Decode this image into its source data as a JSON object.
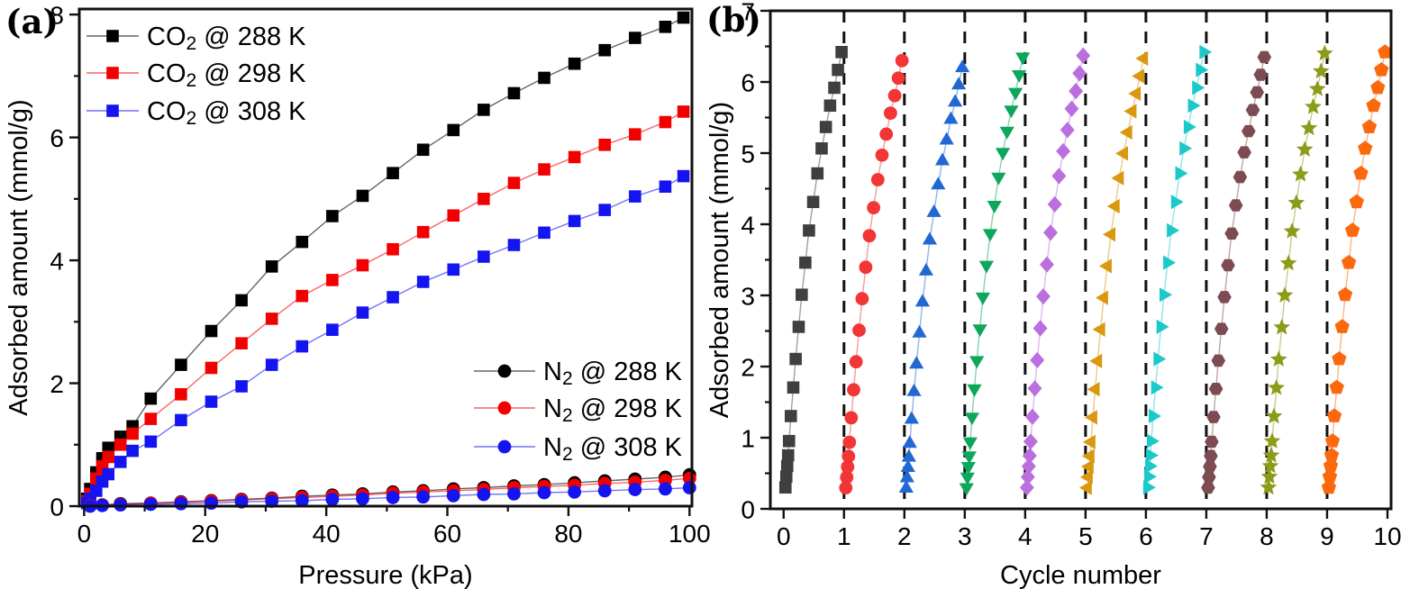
{
  "panels": {
    "a": {
      "tag": "(a)"
    },
    "b": {
      "tag": "(b)"
    }
  },
  "chart_data": [
    {
      "type": "scatter",
      "panel": "a",
      "xlabel": "Pressure (kPa)",
      "ylabel": "Adsorbed amount (mmol/g)",
      "xlim": [
        0,
        100
      ],
      "ylim": [
        0,
        8
      ],
      "x_major_ticks": [
        0,
        20,
        40,
        60,
        80,
        100
      ],
      "x_minor_ticks": [
        10,
        30,
        50,
        70,
        90
      ],
      "y_major_ticks": [
        0,
        2,
        4,
        6,
        8
      ],
      "y_minor_ticks": [
        1,
        3,
        5,
        7
      ],
      "grid": false,
      "legend_position": [
        "upper-left",
        "middle-right"
      ],
      "series": [
        {
          "id": "co2-288k",
          "label": "CO2 @ 288 K",
          "marker": "square",
          "color": "#000000",
          "x": [
            0.5,
            1,
            2,
            3,
            4,
            6,
            8,
            11,
            16,
            21,
            26,
            31,
            36,
            41,
            46,
            51,
            56,
            61,
            66,
            71,
            76,
            81,
            86,
            91,
            96,
            99
          ],
          "y": [
            0.12,
            0.28,
            0.55,
            0.78,
            0.95,
            1.13,
            1.3,
            1.75,
            2.3,
            2.85,
            3.35,
            3.9,
            4.3,
            4.72,
            5.05,
            5.42,
            5.8,
            6.12,
            6.45,
            6.72,
            6.97,
            7.2,
            7.42,
            7.62,
            7.8,
            7.95
          ]
        },
        {
          "id": "co2-298k",
          "label": "CO2 @ 298 K",
          "marker": "square",
          "color": "#f20000",
          "x": [
            0.5,
            1,
            2,
            3,
            4,
            6,
            8,
            11,
            16,
            21,
            26,
            31,
            36,
            41,
            46,
            51,
            56,
            61,
            66,
            71,
            76,
            81,
            86,
            91,
            96,
            99
          ],
          "y": [
            0.08,
            0.2,
            0.45,
            0.65,
            0.8,
            1.0,
            1.18,
            1.42,
            1.82,
            2.25,
            2.65,
            3.05,
            3.42,
            3.68,
            3.92,
            4.18,
            4.46,
            4.73,
            5.0,
            5.26,
            5.48,
            5.68,
            5.88,
            6.05,
            6.25,
            6.42
          ]
        },
        {
          "id": "co2-308k",
          "label": "CO2 @ 308 K",
          "marker": "square",
          "color": "#1414f0",
          "x": [
            0.5,
            1,
            2,
            3,
            4,
            6,
            8,
            11,
            16,
            21,
            26,
            31,
            36,
            41,
            46,
            51,
            56,
            61,
            66,
            71,
            76,
            81,
            86,
            91,
            96,
            99
          ],
          "y": [
            0.05,
            0.12,
            0.25,
            0.4,
            0.52,
            0.72,
            0.9,
            1.05,
            1.4,
            1.7,
            1.95,
            2.3,
            2.6,
            2.87,
            3.15,
            3.4,
            3.65,
            3.85,
            4.06,
            4.25,
            4.45,
            4.64,
            4.82,
            5.04,
            5.2,
            5.37
          ]
        },
        {
          "id": "n2-288k",
          "label": "N2 @ 288 K",
          "marker": "circle",
          "color": "#000000",
          "x": [
            1,
            3,
            6,
            11,
            16,
            21,
            26,
            31,
            36,
            41,
            46,
            51,
            56,
            61,
            66,
            71,
            76,
            81,
            86,
            91,
            96,
            100
          ],
          "y": [
            0.01,
            0.02,
            0.04,
            0.05,
            0.07,
            0.09,
            0.11,
            0.13,
            0.16,
            0.18,
            0.2,
            0.23,
            0.25,
            0.28,
            0.3,
            0.33,
            0.35,
            0.38,
            0.41,
            0.44,
            0.47,
            0.51
          ]
        },
        {
          "id": "n2-298k",
          "label": "N2 @ 298 K",
          "marker": "circle",
          "color": "#f20000",
          "x": [
            1,
            3,
            6,
            11,
            16,
            21,
            26,
            31,
            36,
            41,
            46,
            51,
            56,
            61,
            66,
            71,
            76,
            81,
            86,
            91,
            96,
            100
          ],
          "y": [
            0.01,
            0.02,
            0.03,
            0.05,
            0.06,
            0.08,
            0.1,
            0.12,
            0.14,
            0.16,
            0.18,
            0.21,
            0.23,
            0.25,
            0.27,
            0.3,
            0.32,
            0.34,
            0.37,
            0.39,
            0.42,
            0.45
          ]
        },
        {
          "id": "n2-308k",
          "label": "N2 @ 308 K",
          "marker": "circle",
          "color": "#1414f0",
          "x": [
            1,
            3,
            6,
            11,
            16,
            21,
            26,
            31,
            36,
            41,
            46,
            51,
            56,
            61,
            66,
            71,
            76,
            81,
            86,
            91,
            96,
            100
          ],
          "y": [
            0.0,
            0.01,
            0.02,
            0.03,
            0.04,
            0.05,
            0.07,
            0.08,
            0.09,
            0.11,
            0.12,
            0.14,
            0.15,
            0.17,
            0.19,
            0.2,
            0.22,
            0.23,
            0.25,
            0.27,
            0.28,
            0.3
          ]
        }
      ]
    },
    {
      "type": "scatter",
      "panel": "b",
      "xlabel": "Cycle number",
      "ylabel": "Adsorbed amount (mmol/g)",
      "xlim": [
        0,
        10
      ],
      "ylim": [
        0,
        7
      ],
      "x_major_ticks": [
        0,
        1,
        2,
        3,
        4,
        5,
        6,
        7,
        8,
        9,
        10
      ],
      "y_major_ticks": [
        0,
        1,
        2,
        3,
        4,
        5,
        6,
        7
      ],
      "y_minor_ticks": [
        0.5,
        1.5,
        2.5,
        3.5,
        4.5,
        5.5,
        6.5
      ],
      "dashed_guides": [
        1,
        2,
        3,
        4,
        5,
        6,
        7,
        8,
        9
      ],
      "grid": false,
      "cycle_t_offsets": [
        0.03,
        0.045,
        0.06,
        0.075,
        0.09,
        0.12,
        0.16,
        0.2,
        0.25,
        0.3,
        0.36,
        0.42,
        0.49,
        0.56,
        0.63,
        0.7,
        0.77,
        0.84,
        0.9,
        0.96
      ],
      "cycle_y_profile": [
        0.3,
        0.45,
        0.6,
        0.75,
        0.95,
        1.3,
        1.7,
        2.1,
        2.55,
        3.0,
        3.45,
        3.9,
        4.3,
        4.7,
        5.05,
        5.35,
        5.65,
        5.9,
        6.15,
        6.4
      ],
      "profile_peak_reference": 6.4,
      "series": [
        {
          "id": "cycle-1",
          "marker": "square",
          "color": "#3f3f3f",
          "peak": 6.42
        },
        {
          "id": "cycle-2",
          "marker": "circle",
          "color": "#f23535",
          "peak": 6.3
        },
        {
          "id": "cycle-3",
          "marker": "triangle-up",
          "color": "#2268d2",
          "peak": 6.2
        },
        {
          "id": "cycle-4",
          "marker": "triangle-down",
          "color": "#0da75c",
          "peak": 6.35
        },
        {
          "id": "cycle-5",
          "marker": "diamond",
          "color": "#bb6fdf",
          "peak": 6.37
        },
        {
          "id": "cycle-6",
          "marker": "triangle-left",
          "color": "#d9980f",
          "peak": 6.33
        },
        {
          "id": "cycle-7",
          "marker": "triangle-right",
          "color": "#1cc9c9",
          "peak": 6.42
        },
        {
          "id": "cycle-8",
          "marker": "hexagon",
          "color": "#7d4b52",
          "peak": 6.35
        },
        {
          "id": "cycle-9",
          "marker": "star",
          "color": "#8d9b1b",
          "peak": 6.4
        },
        {
          "id": "cycle-10",
          "marker": "pentagon",
          "color": "#fb690c",
          "peak": 6.42
        }
      ]
    }
  ]
}
